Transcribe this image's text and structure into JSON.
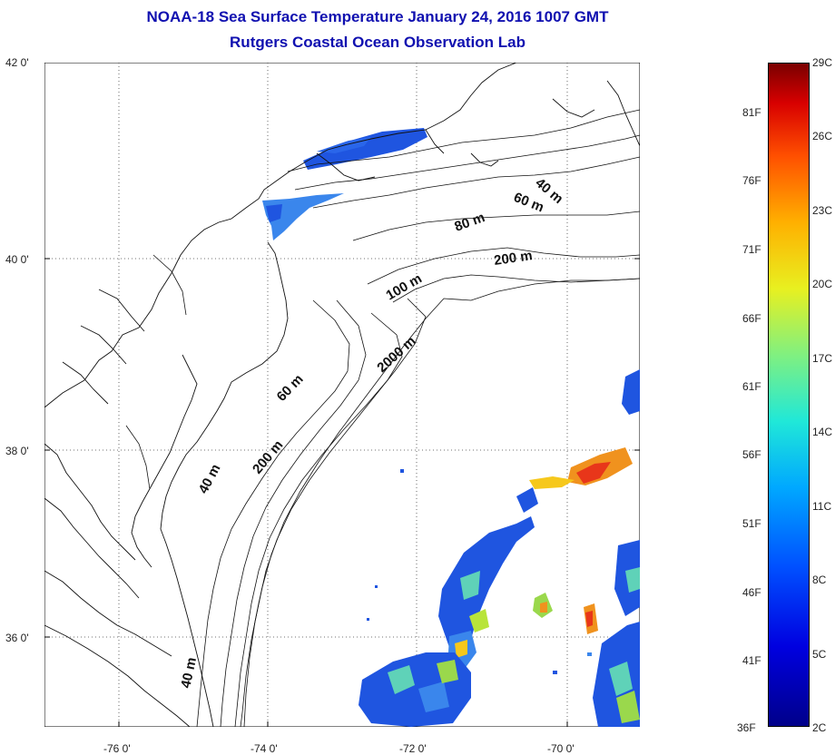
{
  "title": {
    "line1": "NOAA-18 Sea Surface Temperature January 24, 2016 1007 GMT",
    "line2": "Rutgers Coastal Ocean Observation Lab"
  },
  "map": {
    "lat_ticks": [
      "42 0'",
      "40 0'",
      "38 0'",
      "36 0'"
    ],
    "lon_ticks": [
      "-76 0'",
      "-74 0'",
      "-72 0'",
      "-70 0'"
    ],
    "bounds": {
      "lon_min": -77,
      "lon_max": -68.8,
      "lat_min": 35,
      "lat_max": 42
    },
    "isobath_labels": [
      "40 m",
      "60 m",
      "80 m",
      "200 m",
      "100 m",
      "2000 m",
      "60 m",
      "40 m",
      "200 m",
      "40 m"
    ]
  },
  "colorbar": {
    "celsius_labels": [
      "29C",
      "26C",
      "23C",
      "20C",
      "17C",
      "14C",
      "11C",
      "8C",
      "5C",
      "2C"
    ],
    "fahrenheit_labels": [
      "81F",
      "76F",
      "71F",
      "66F",
      "61F",
      "56F",
      "51F",
      "46F",
      "41F",
      "36F"
    ],
    "min_c": 2,
    "max_c": 29
  },
  "colors": {
    "title": "#1010b0",
    "cold": "#1a4fd8",
    "warm": "#e8361a"
  }
}
